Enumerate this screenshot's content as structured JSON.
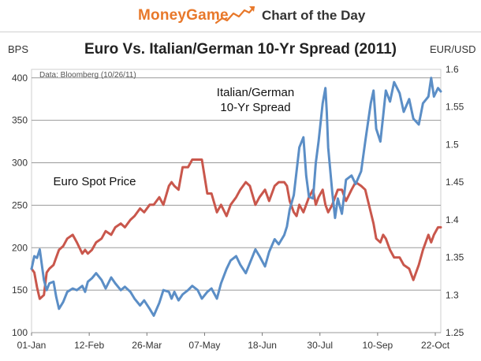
{
  "header": {
    "brand": "MoneyGame",
    "tagline": "Chart of the Day",
    "logo_icon": "rising-line-chart-icon"
  },
  "colors": {
    "brand": "#e8782a",
    "spread_series": "#5b8ec6",
    "euro_series": "#c9574c",
    "grid": "#9a9a9a"
  },
  "chart_data": {
    "type": "line",
    "title": "Euro Vs. Italian/German 10-Yr Spread (2011)",
    "source_note": "Data: Bloomberg (10/26/11)",
    "ylabel_left": "BPS",
    "ylabel_right": "EUR/USD",
    "xlim": [
      "2011-01-01",
      "2011-10-26"
    ],
    "ylim_left": [
      100,
      410
    ],
    "ylim_right": [
      1.25,
      1.6
    ],
    "y_ticks_left": [
      "100",
      "150",
      "200",
      "250",
      "300",
      "350",
      "400"
    ],
    "y_ticks_right": [
      "1.25",
      "1.3",
      "1.35",
      "1.4",
      "1.45",
      "1.5",
      "1.55",
      "1.6"
    ],
    "x_ticks": [
      {
        "date": "2011-01-01",
        "label": "01-Jan"
      },
      {
        "date": "2011-02-12",
        "label": "12-Feb"
      },
      {
        "date": "2011-03-26",
        "label": "26-Mar"
      },
      {
        "date": "2011-05-07",
        "label": "07-May"
      },
      {
        "date": "2011-06-18",
        "label": "18-Jun"
      },
      {
        "date": "2011-07-30",
        "label": "30-Jul"
      },
      {
        "date": "2011-09-10",
        "label": "10-Sep"
      },
      {
        "date": "2011-10-22",
        "label": "22-Oct"
      }
    ],
    "grid": "horizontal",
    "annotations": [
      {
        "series": "spread",
        "lines": [
          "Italian/German",
          "10-Yr Spread"
        ]
      },
      {
        "series": "euro",
        "lines": [
          "Euro Spot Price"
        ]
      }
    ],
    "series": [
      {
        "key": "spread",
        "axis": "left",
        "x": [
          "2011-01-01",
          "2011-01-03",
          "2011-01-05",
          "2011-01-07",
          "2011-01-10",
          "2011-01-12",
          "2011-01-14",
          "2011-01-17",
          "2011-01-19",
          "2011-01-21",
          "2011-01-24",
          "2011-01-27",
          "2011-01-31",
          "2011-02-03",
          "2011-02-07",
          "2011-02-09",
          "2011-02-11",
          "2011-02-14",
          "2011-02-17",
          "2011-02-21",
          "2011-02-24",
          "2011-02-28",
          "2011-03-03",
          "2011-03-07",
          "2011-03-10",
          "2011-03-14",
          "2011-03-17",
          "2011-03-21",
          "2011-03-24",
          "2011-03-28",
          "2011-03-31",
          "2011-04-04",
          "2011-04-07",
          "2011-04-11",
          "2011-04-13",
          "2011-04-15",
          "2011-04-18",
          "2011-04-21",
          "2011-04-25",
          "2011-04-28",
          "2011-05-02",
          "2011-05-05",
          "2011-05-09",
          "2011-05-12",
          "2011-05-16",
          "2011-05-19",
          "2011-05-23",
          "2011-05-26",
          "2011-05-30",
          "2011-06-02",
          "2011-06-06",
          "2011-06-09",
          "2011-06-13",
          "2011-06-16",
          "2011-06-20",
          "2011-06-23",
          "2011-06-27",
          "2011-06-30",
          "2011-07-04",
          "2011-07-06",
          "2011-07-08",
          "2011-07-11",
          "2011-07-13",
          "2011-07-15",
          "2011-07-18",
          "2011-07-20",
          "2011-07-22",
          "2011-07-25",
          "2011-07-27",
          "2011-07-29",
          "2011-08-01",
          "2011-08-03",
          "2011-08-04",
          "2011-08-05",
          "2011-08-08",
          "2011-08-10",
          "2011-08-12",
          "2011-08-15",
          "2011-08-18",
          "2011-08-22",
          "2011-08-25",
          "2011-08-29",
          "2011-09-01",
          "2011-09-05",
          "2011-09-07",
          "2011-09-09",
          "2011-09-12",
          "2011-09-14",
          "2011-09-16",
          "2011-09-19",
          "2011-09-22",
          "2011-09-26",
          "2011-09-29",
          "2011-10-03",
          "2011-10-06",
          "2011-10-10",
          "2011-10-13",
          "2011-10-17",
          "2011-10-19",
          "2011-10-21",
          "2011-10-24",
          "2011-10-26"
        ],
        "values": [
          175,
          190,
          188,
          198,
          162,
          150,
          158,
          160,
          142,
          128,
          136,
          148,
          152,
          150,
          155,
          148,
          160,
          164,
          170,
          162,
          152,
          165,
          158,
          150,
          154,
          148,
          140,
          132,
          138,
          128,
          120,
          135,
          150,
          148,
          140,
          148,
          138,
          145,
          150,
          155,
          150,
          140,
          148,
          152,
          140,
          158,
          175,
          185,
          190,
          180,
          170,
          182,
          198,
          190,
          178,
          195,
          210,
          204,
          215,
          225,
          245,
          262,
          290,
          318,
          330,
          285,
          260,
          258,
          300,
          325,
          370,
          388,
          360,
          318,
          265,
          235,
          258,
          240,
          280,
          285,
          275,
          290,
          325,
          370,
          385,
          340,
          325,
          355,
          385,
          372,
          395,
          382,
          360,
          375,
          352,
          345,
          370,
          378,
          400,
          378,
          388,
          384
        ]
      },
      {
        "key": "euro",
        "axis": "right",
        "x": [
          "2011-01-01",
          "2011-01-03",
          "2011-01-05",
          "2011-01-07",
          "2011-01-10",
          "2011-01-12",
          "2011-01-14",
          "2011-01-17",
          "2011-01-19",
          "2011-01-21",
          "2011-01-24",
          "2011-01-27",
          "2011-01-31",
          "2011-02-03",
          "2011-02-07",
          "2011-02-09",
          "2011-02-11",
          "2011-02-14",
          "2011-02-17",
          "2011-02-21",
          "2011-02-24",
          "2011-02-28",
          "2011-03-03",
          "2011-03-07",
          "2011-03-10",
          "2011-03-14",
          "2011-03-17",
          "2011-03-21",
          "2011-03-24",
          "2011-03-28",
          "2011-03-31",
          "2011-04-04",
          "2011-04-07",
          "2011-04-11",
          "2011-04-13",
          "2011-04-15",
          "2011-04-18",
          "2011-04-21",
          "2011-04-25",
          "2011-04-28",
          "2011-05-02",
          "2011-05-05",
          "2011-05-09",
          "2011-05-12",
          "2011-05-16",
          "2011-05-19",
          "2011-05-23",
          "2011-05-26",
          "2011-05-30",
          "2011-06-02",
          "2011-06-06",
          "2011-06-09",
          "2011-06-13",
          "2011-06-16",
          "2011-06-20",
          "2011-06-23",
          "2011-06-27",
          "2011-06-30",
          "2011-07-04",
          "2011-07-06",
          "2011-07-08",
          "2011-07-11",
          "2011-07-13",
          "2011-07-15",
          "2011-07-18",
          "2011-07-20",
          "2011-07-22",
          "2011-07-25",
          "2011-07-27",
          "2011-07-29",
          "2011-08-01",
          "2011-08-03",
          "2011-08-05",
          "2011-08-08",
          "2011-08-10",
          "2011-08-12",
          "2011-08-15",
          "2011-08-18",
          "2011-08-22",
          "2011-08-25",
          "2011-08-29",
          "2011-09-01",
          "2011-09-05",
          "2011-09-07",
          "2011-09-09",
          "2011-09-12",
          "2011-09-14",
          "2011-09-16",
          "2011-09-19",
          "2011-09-22",
          "2011-09-26",
          "2011-09-29",
          "2011-10-03",
          "2011-10-06",
          "2011-10-10",
          "2011-10-13",
          "2011-10-17",
          "2011-10-19",
          "2011-10-21",
          "2011-10-24",
          "2011-10-26"
        ],
        "values": [
          1.335,
          1.33,
          1.31,
          1.295,
          1.3,
          1.33,
          1.335,
          1.34,
          1.35,
          1.36,
          1.365,
          1.375,
          1.38,
          1.37,
          1.355,
          1.36,
          1.355,
          1.36,
          1.37,
          1.375,
          1.385,
          1.38,
          1.39,
          1.395,
          1.39,
          1.4,
          1.405,
          1.415,
          1.41,
          1.42,
          1.42,
          1.43,
          1.42,
          1.445,
          1.45,
          1.445,
          1.44,
          1.47,
          1.47,
          1.48,
          1.48,
          1.48,
          1.435,
          1.435,
          1.41,
          1.42,
          1.405,
          1.42,
          1.43,
          1.44,
          1.45,
          1.445,
          1.42,
          1.43,
          1.44,
          1.425,
          1.445,
          1.45,
          1.45,
          1.445,
          1.425,
          1.41,
          1.405,
          1.42,
          1.41,
          1.42,
          1.43,
          1.44,
          1.42,
          1.43,
          1.44,
          1.42,
          1.41,
          1.42,
          1.43,
          1.44,
          1.44,
          1.425,
          1.44,
          1.45,
          1.445,
          1.44,
          1.41,
          1.395,
          1.375,
          1.37,
          1.38,
          1.375,
          1.36,
          1.35,
          1.35,
          1.34,
          1.335,
          1.32,
          1.34,
          1.36,
          1.38,
          1.37,
          1.38,
          1.39,
          1.39
        ]
      }
    ]
  }
}
